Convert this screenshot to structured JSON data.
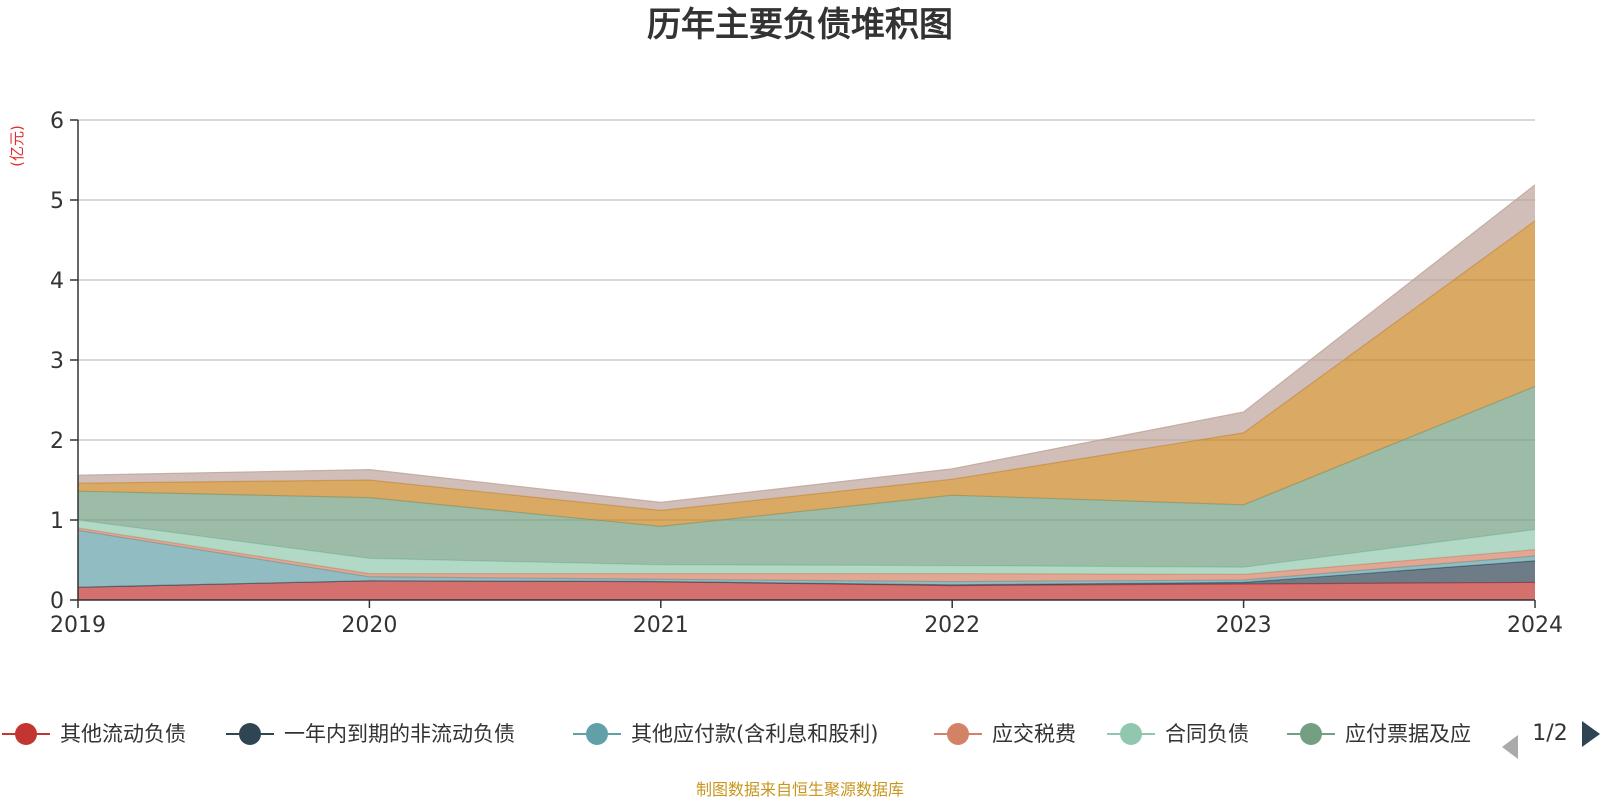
{
  "chart_data": {
    "type": "area",
    "stacked": true,
    "title": "历年主要负债堆积图",
    "unit": "(亿元)",
    "x": [
      "2019",
      "2020",
      "2021",
      "2022",
      "2023",
      "2024"
    ],
    "ylim": [
      0,
      6
    ],
    "yticks": [
      "0",
      "1",
      "2",
      "3",
      "4",
      "5",
      "6"
    ],
    "grid": true,
    "legend_position": "bottom",
    "series": [
      {
        "name": "其他流动负债",
        "color": "#c23531",
        "values": [
          0.16,
          0.24,
          0.23,
          0.18,
          0.2,
          0.22
        ]
      },
      {
        "name": "一年内到期的非流动负债",
        "color": "#2f4554",
        "values": [
          0,
          0,
          0,
          0.01,
          0.02,
          0.27
        ]
      },
      {
        "name": "其他应付款(含利息和股利)",
        "color": "#61a0a8",
        "values": [
          0.71,
          0.05,
          0.03,
          0.04,
          0.03,
          0.06
        ]
      },
      {
        "name": "应交税费",
        "color": "#d48265",
        "values": [
          0.03,
          0.04,
          0.07,
          0.1,
          0.07,
          0.08
        ]
      },
      {
        "name": "合同负债",
        "color": "#91c7ae",
        "values": [
          0.1,
          0.19,
          0.11,
          0.1,
          0.09,
          0.25
        ]
      },
      {
        "name": "应付票据及应付账款",
        "color": "#749f83",
        "values": [
          0.36,
          0.76,
          0.48,
          0.88,
          0.78,
          1.79
        ]
      },
      {
        "name": "",
        "color": "#ca8622",
        "values": [
          0.1,
          0.22,
          0.2,
          0.2,
          0.9,
          2.07
        ]
      },
      {
        "name": "",
        "color": "#bda29a",
        "values": [
          0.1,
          0.13,
          0.1,
          0.13,
          0.26,
          0.45
        ]
      }
    ]
  },
  "legend": {
    "visible_items": [
      "其他流动负债",
      "一年内到期的非流动负债",
      "其他应付款(含利息和股利)",
      "应交税费",
      "合同负债",
      "应付票据及应"
    ],
    "page": "1/2"
  },
  "source": "制图数据来自恒生聚源数据库",
  "icons": {
    "prev": "prev-page-icon",
    "next": "next-page-icon"
  }
}
